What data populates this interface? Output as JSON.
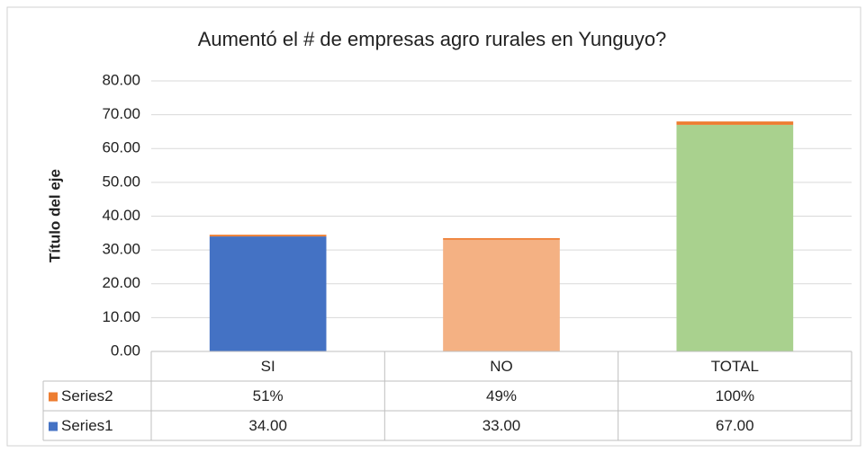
{
  "chart_data": {
    "type": "bar",
    "stacked": true,
    "title": "Aumentó el # de empresas agro rurales en Yunguyo?",
    "y_label": "Título del eje",
    "categories": [
      "SI",
      "NO",
      "TOTAL"
    ],
    "series": [
      {
        "name": "Series1",
        "color": "#4472c4",
        "point_colors": [
          "#4472c4",
          "#f4b183",
          "#a9d18e"
        ],
        "values": [
          34,
          33,
          67
        ],
        "value_labels": [
          "34.00",
          "33.00",
          "67.00"
        ]
      },
      {
        "name": "Series2",
        "color": "#ed7d31",
        "values": [
          0.51,
          0.49,
          1
        ],
        "value_labels": [
          "51%",
          "49%",
          "100%"
        ]
      }
    ],
    "ylim": [
      0,
      80
    ],
    "yticks": [
      {
        "value": 0,
        "label": "0.00"
      },
      {
        "value": 10,
        "label": "10.00"
      },
      {
        "value": 20,
        "label": "20.00"
      },
      {
        "value": 30,
        "label": "30.00"
      },
      {
        "value": 40,
        "label": "40.00"
      },
      {
        "value": 50,
        "label": "50.00"
      },
      {
        "value": 60,
        "label": "60.00"
      },
      {
        "value": 70,
        "label": "70.00"
      },
      {
        "value": 80,
        "label": "80.00"
      }
    ],
    "grid": true,
    "data_table": true
  }
}
